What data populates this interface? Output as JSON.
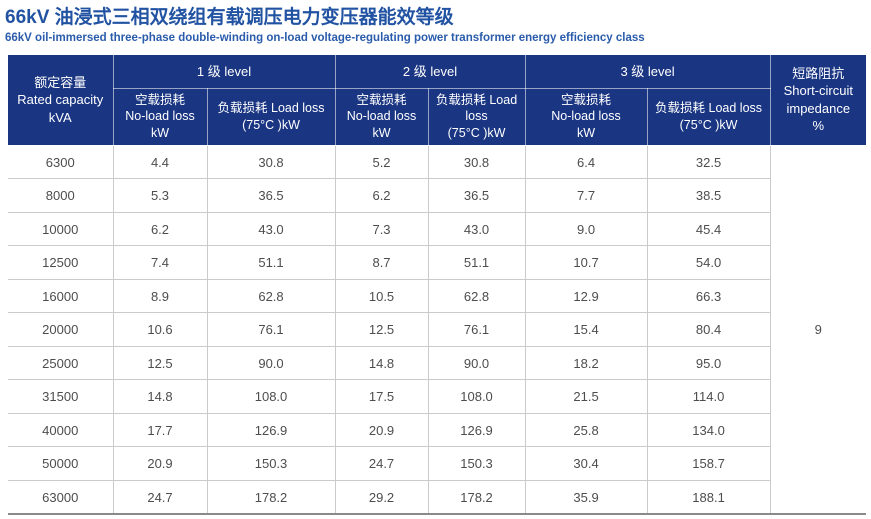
{
  "page": {
    "title": "66kV 油浸式三相双绕组有载调压电力变压器能效等级",
    "subtitle": "66kV oil-immersed three-phase double-winding on-load voltage-regulating power transformer energy efficiency class"
  },
  "colors": {
    "title_text": "#2253a3",
    "subtitle_text": "#2a5cab",
    "header_bg": "#1a3582",
    "header_text": "#ffffff",
    "cell_text": "#4d4d4d",
    "grid_line": "#cbcbcb",
    "bottom_border": "#8a8a8a"
  },
  "table": {
    "header": {
      "rated_capacity": "额定容量\nRated capacity\nkVA",
      "level1": "1 级 level",
      "level2": "2 级 level",
      "level3": "3 级 level",
      "no_load_loss": "空载损耗\nNo-load loss\nkW",
      "load_loss": "负载损耗 Load loss\n(75°C )kW",
      "load_loss_narrow": "负载损耗 Load\nloss\n(75°C )kW",
      "impedance": "短路阻抗\nShort-circuit\nimpedance\n%"
    },
    "impedance_value": "9",
    "rows": [
      [
        "6300",
        "4.4",
        "30.8",
        "5.2",
        "30.8",
        "6.4",
        "32.5"
      ],
      [
        "8000",
        "5.3",
        "36.5",
        "6.2",
        "36.5",
        "7.7",
        "38.5"
      ],
      [
        "10000",
        "6.2",
        "43.0",
        "7.3",
        "43.0",
        "9.0",
        "45.4"
      ],
      [
        "12500",
        "7.4",
        "51.1",
        "8.7",
        "51.1",
        "10.7",
        "54.0"
      ],
      [
        "16000",
        "8.9",
        "62.8",
        "10.5",
        "62.8",
        "12.9",
        "66.3"
      ],
      [
        "20000",
        "10.6",
        "76.1",
        "12.5",
        "76.1",
        "15.4",
        "80.4"
      ],
      [
        "25000",
        "12.5",
        "90.0",
        "14.8",
        "90.0",
        "18.2",
        "95.0"
      ],
      [
        "31500",
        "14.8",
        "108.0",
        "17.5",
        "108.0",
        "21.5",
        "114.0"
      ],
      [
        "40000",
        "17.7",
        "126.9",
        "20.9",
        "126.9",
        "25.8",
        "134.0"
      ],
      [
        "50000",
        "20.9",
        "150.3",
        "24.7",
        "150.3",
        "30.4",
        "158.7"
      ],
      [
        "63000",
        "24.7",
        "178.2",
        "29.2",
        "178.2",
        "35.9",
        "188.1"
      ]
    ]
  }
}
